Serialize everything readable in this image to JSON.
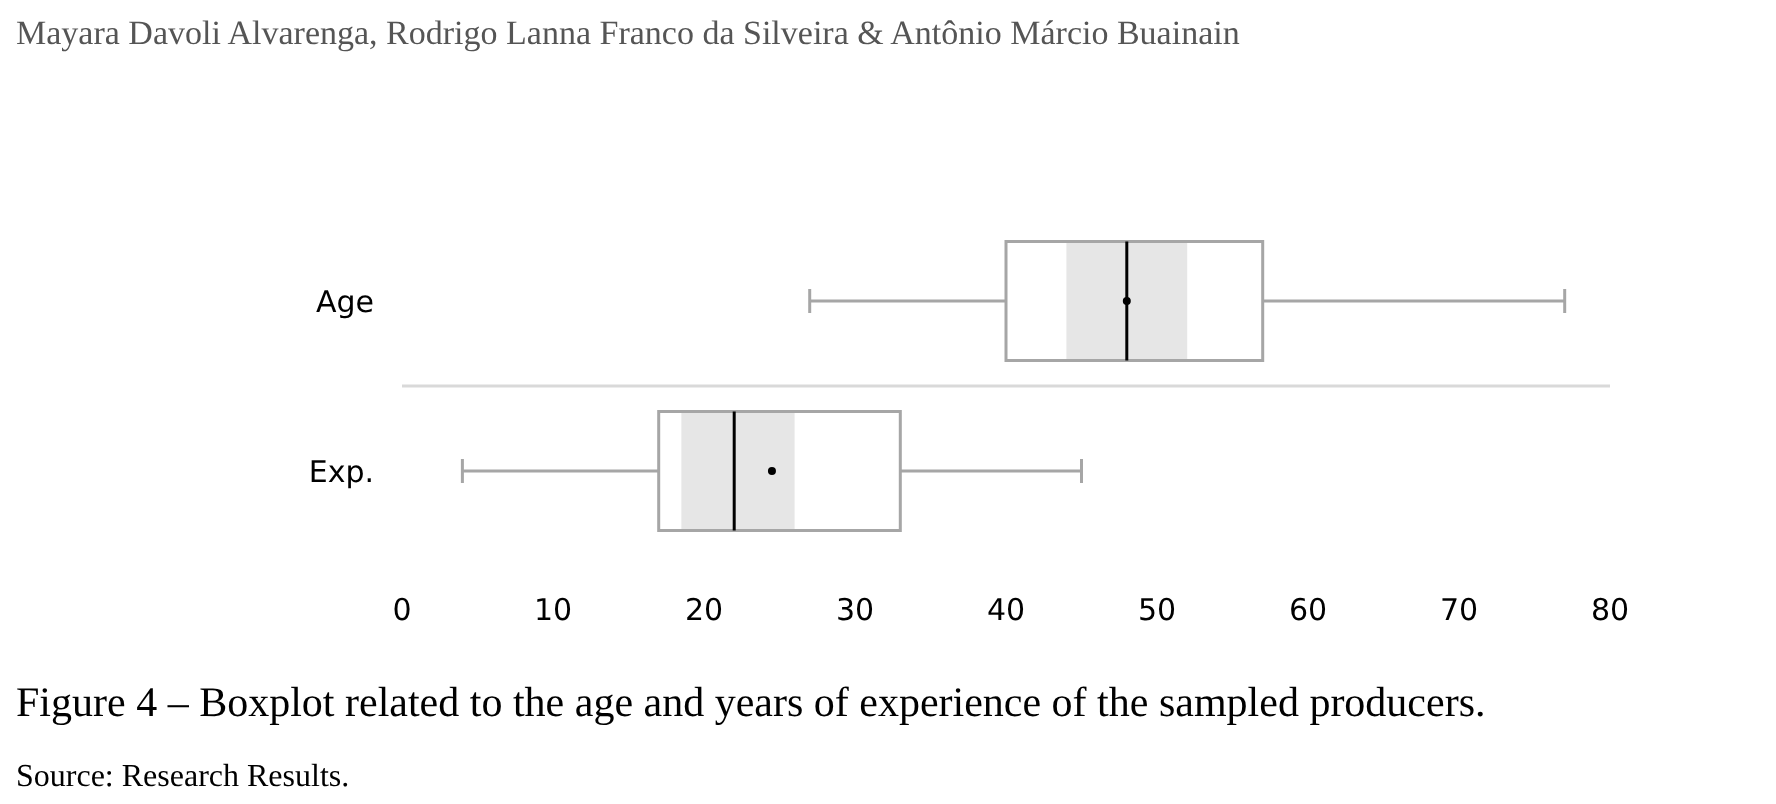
{
  "chart_data": {
    "type": "box",
    "orientation": "horizontal",
    "title": "Figure 4 – Boxplot related to the age and years of experience of the sampled producers.",
    "categories": [
      "Age",
      "Exp."
    ],
    "xlim": [
      0,
      80
    ],
    "xticks": [
      0,
      10,
      20,
      30,
      40,
      50,
      60,
      70,
      80
    ],
    "grid": "y",
    "series": [
      {
        "type": "bar",
        "base": [
          44,
          18.5
        ],
        "values": [
          8,
          7.5
        ],
        "color": "#e6e6e6"
      },
      {
        "color": "#a6a6a6",
        "boxes": [
          {
            "low": 27,
            "q1": 40,
            "median": 48,
            "q3": 57,
            "high": 77,
            "mean": 48
          },
          {
            "low": 4,
            "q1": 17,
            "median": 22,
            "q3": 33,
            "high": 45,
            "mean": 24.5
          }
        ]
      }
    ],
    "annotations": [
      "Mayara Davoli Alvarenga, Rodrigo Lanna Franco da Silveira & Antônio Márcio Buainain",
      "Source: Research Results."
    ]
  }
}
